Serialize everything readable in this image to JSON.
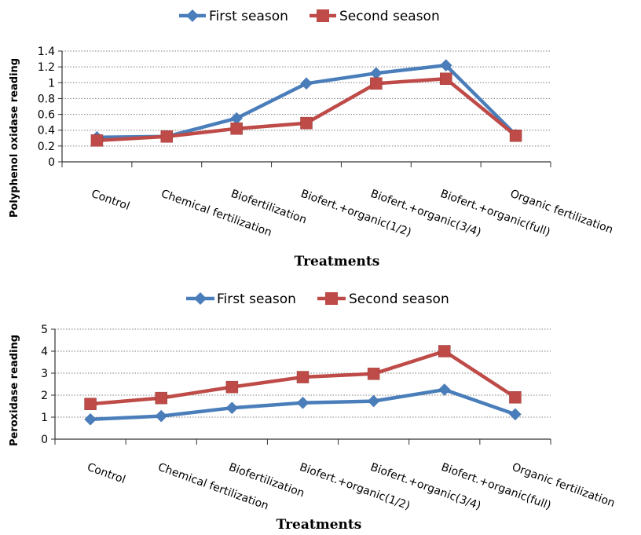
{
  "chart_data": [
    {
      "type": "line",
      "title": "",
      "xlabel": "Treatments",
      "ylabel": "Polyphenol oxidase reading",
      "ylim": [
        0,
        1.4
      ],
      "yticks": [
        "0",
        "0.2",
        "0.4",
        "0.6",
        "0.8",
        "1",
        "1.2",
        "1.4"
      ],
      "grid": true,
      "legend_position": "top",
      "categories": [
        "Control",
        "Chemical fertilization",
        "Biofertilization",
        "Biofert.+organic(1/2)",
        "Biofert.+organic(3/4)",
        "Biofert.+organic(full)",
        "Organic fertilization"
      ],
      "series": [
        {
          "name": "First season",
          "color": "#4a7ebb",
          "marker": "diamond",
          "values": [
            0.31,
            0.32,
            0.55,
            0.99,
            1.12,
            1.22,
            0.34
          ]
        },
        {
          "name": "Second season",
          "color": "#be4b48",
          "marker": "square",
          "values": [
            0.27,
            0.32,
            0.42,
            0.49,
            0.99,
            1.05,
            0.33
          ]
        }
      ]
    },
    {
      "type": "line",
      "title": "",
      "xlabel": "Treatments",
      "ylabel": "Peroxidase reading",
      "ylim": [
        0,
        5
      ],
      "yticks": [
        "0",
        "1",
        "2",
        "3",
        "4",
        "5"
      ],
      "grid": true,
      "legend_position": "top",
      "categories": [
        "Control",
        "Chemical fertilization",
        "Biofertilization",
        "Biofert.+organic(1/2)",
        "Biofert.+organic(3/4)",
        "Biofert.+organic(full)",
        "Organic fertilization"
      ],
      "series": [
        {
          "name": "First season",
          "color": "#4a7ebb",
          "marker": "diamond",
          "values": [
            0.9,
            1.05,
            1.42,
            1.65,
            1.73,
            2.25,
            1.13
          ]
        },
        {
          "name": "Second season",
          "color": "#be4b48",
          "marker": "square",
          "values": [
            1.6,
            1.87,
            2.37,
            2.82,
            2.97,
            4.0,
            1.9
          ]
        }
      ]
    }
  ]
}
